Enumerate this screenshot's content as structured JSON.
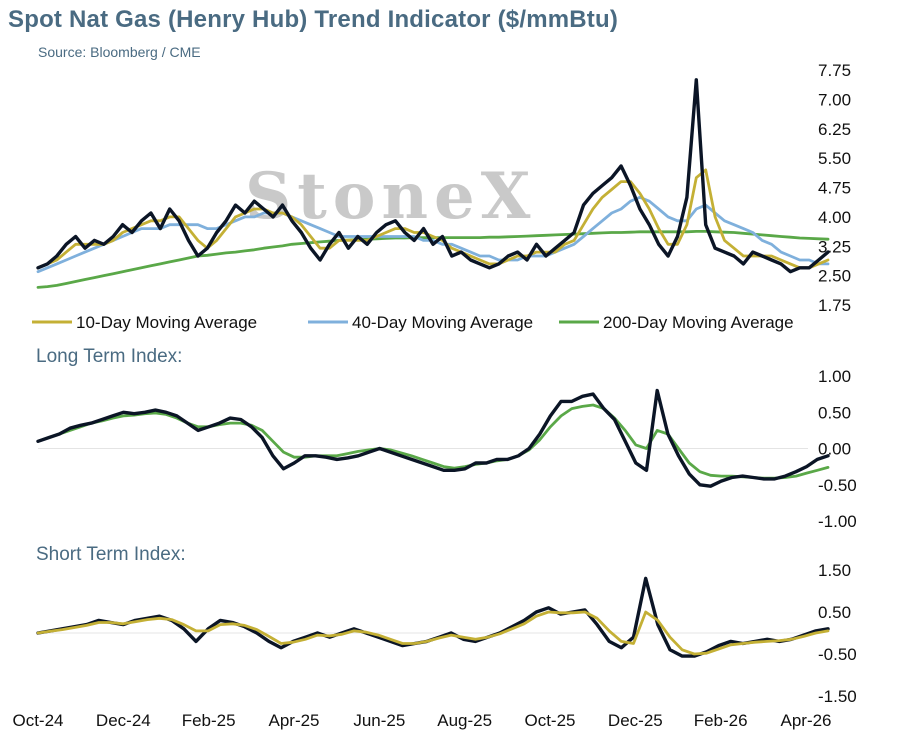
{
  "title": "Spot Nat Gas (Henry Hub) Trend Indicator ($/mmBtu)",
  "source": "Source: Bloomberg / CME",
  "watermark": "StoneX",
  "colors": {
    "spot": "#0b1526",
    "ma10": "#c4b035",
    "ma40": "#7fb0dc",
    "ma200": "#5aa848",
    "text": "#4a6b82"
  },
  "chart_data": [
    {
      "type": "line",
      "title": "Spot Nat Gas (Henry Hub) Trend Indicator ($/mmBtu)",
      "x_ticks": [
        "Oct-24",
        "Dec-24",
        "Feb-25",
        "Apr-25",
        "Jun-25",
        "Aug-25",
        "Oct-25",
        "Dec-25",
        "Feb-26",
        "Apr-26"
      ],
      "y_ticks": [
        "7.75",
        "7.00",
        "6.25",
        "5.50",
        "4.75",
        "4.00",
        "3.25",
        "2.50",
        "1.75"
      ],
      "ylim": [
        1.75,
        7.75
      ],
      "legend": [
        "10-Day Moving Average",
        "40-Day Moving Average",
        "200-Day Moving Average"
      ],
      "legend_position": "bottom",
      "series": [
        {
          "name": "Spot",
          "key": "spot",
          "values": [
            2.7,
            2.8,
            3.0,
            3.3,
            3.5,
            3.2,
            3.4,
            3.3,
            3.5,
            3.8,
            3.6,
            3.9,
            4.1,
            3.7,
            4.2,
            3.9,
            3.4,
            3.0,
            3.2,
            3.6,
            3.9,
            4.3,
            4.1,
            4.4,
            4.2,
            4.0,
            4.3,
            3.9,
            3.6,
            3.2,
            2.9,
            3.3,
            3.6,
            3.2,
            3.5,
            3.3,
            3.6,
            3.8,
            3.9,
            3.6,
            3.4,
            3.7,
            3.3,
            3.5,
            3.0,
            3.1,
            2.9,
            2.8,
            2.7,
            2.8,
            3.0,
            3.1,
            2.9,
            3.3,
            3.0,
            3.2,
            3.4,
            3.6,
            4.3,
            4.6,
            4.8,
            5.0,
            5.3,
            4.8,
            4.2,
            3.8,
            3.3,
            3.0,
            3.5,
            4.5,
            7.5,
            3.8,
            3.2,
            3.1,
            3.0,
            2.8,
            3.1,
            3.0,
            2.9,
            2.8,
            2.6,
            2.7,
            2.7,
            2.9,
            3.1
          ]
        },
        {
          "name": "10-Day Moving Average",
          "key": "ma10",
          "values": [
            2.7,
            2.8,
            2.9,
            3.1,
            3.3,
            3.3,
            3.3,
            3.3,
            3.4,
            3.6,
            3.7,
            3.8,
            3.9,
            3.9,
            4.0,
            4.0,
            3.7,
            3.4,
            3.2,
            3.4,
            3.7,
            4.0,
            4.1,
            4.2,
            4.2,
            4.1,
            4.1,
            4.0,
            3.8,
            3.5,
            3.2,
            3.2,
            3.4,
            3.4,
            3.4,
            3.4,
            3.5,
            3.6,
            3.7,
            3.7,
            3.6,
            3.6,
            3.5,
            3.4,
            3.2,
            3.1,
            3.0,
            2.9,
            2.8,
            2.8,
            2.9,
            3.0,
            3.0,
            3.1,
            3.1,
            3.1,
            3.3,
            3.4,
            3.8,
            4.2,
            4.5,
            4.7,
            4.9,
            4.9,
            4.6,
            4.2,
            3.7,
            3.3,
            3.3,
            3.8,
            5.0,
            5.2,
            4.0,
            3.4,
            3.2,
            3.0,
            3.0,
            3.0,
            3.0,
            2.9,
            2.8,
            2.7,
            2.7,
            2.8,
            2.9
          ]
        },
        {
          "name": "40-Day Moving Average",
          "key": "ma40",
          "values": [
            2.6,
            2.7,
            2.8,
            2.9,
            3.0,
            3.1,
            3.2,
            3.3,
            3.4,
            3.5,
            3.6,
            3.7,
            3.7,
            3.7,
            3.8,
            3.8,
            3.8,
            3.8,
            3.7,
            3.7,
            3.8,
            3.9,
            4.0,
            4.0,
            4.1,
            4.1,
            4.1,
            4.0,
            3.9,
            3.8,
            3.7,
            3.6,
            3.5,
            3.5,
            3.5,
            3.5,
            3.5,
            3.5,
            3.5,
            3.5,
            3.5,
            3.4,
            3.4,
            3.3,
            3.3,
            3.2,
            3.1,
            3.0,
            3.0,
            2.9,
            2.9,
            2.9,
            3.0,
            3.0,
            3.0,
            3.1,
            3.2,
            3.3,
            3.5,
            3.7,
            3.9,
            4.1,
            4.2,
            4.4,
            4.5,
            4.4,
            4.2,
            4.0,
            3.9,
            3.9,
            4.2,
            4.3,
            4.1,
            3.9,
            3.8,
            3.7,
            3.6,
            3.4,
            3.3,
            3.1,
            3.0,
            2.9,
            2.9,
            2.8,
            2.8
          ]
        },
        {
          "name": "200-Day Moving Average",
          "key": "ma200",
          "values": [
            2.2,
            2.22,
            2.25,
            2.3,
            2.35,
            2.4,
            2.45,
            2.5,
            2.55,
            2.6,
            2.65,
            2.7,
            2.75,
            2.8,
            2.85,
            2.9,
            2.95,
            3.0,
            3.02,
            3.05,
            3.08,
            3.1,
            3.13,
            3.16,
            3.2,
            3.23,
            3.26,
            3.3,
            3.32,
            3.34,
            3.36,
            3.38,
            3.4,
            3.41,
            3.42,
            3.43,
            3.44,
            3.45,
            3.46,
            3.46,
            3.47,
            3.47,
            3.47,
            3.47,
            3.47,
            3.47,
            3.47,
            3.47,
            3.48,
            3.48,
            3.49,
            3.5,
            3.51,
            3.52,
            3.53,
            3.54,
            3.55,
            3.56,
            3.57,
            3.58,
            3.59,
            3.6,
            3.6,
            3.61,
            3.62,
            3.62,
            3.62,
            3.62,
            3.62,
            3.62,
            3.63,
            3.63,
            3.62,
            3.61,
            3.6,
            3.58,
            3.56,
            3.54,
            3.52,
            3.5,
            3.48,
            3.46,
            3.45,
            3.44,
            3.43
          ]
        }
      ]
    },
    {
      "type": "line",
      "title": "Long Term Index:",
      "y_ticks": [
        "1.00",
        "0.50",
        "0.00",
        "-0.50",
        "-1.00"
      ],
      "ylim": [
        -1.0,
        1.0
      ],
      "series": [
        {
          "key": "spot",
          "values": [
            0.1,
            0.15,
            0.2,
            0.28,
            0.32,
            0.35,
            0.4,
            0.45,
            0.5,
            0.48,
            0.5,
            0.53,
            0.5,
            0.45,
            0.35,
            0.25,
            0.3,
            0.35,
            0.42,
            0.4,
            0.3,
            0.15,
            -0.1,
            -0.28,
            -0.2,
            -0.1,
            -0.1,
            -0.12,
            -0.15,
            -0.13,
            -0.1,
            -0.05,
            0.0,
            -0.05,
            -0.1,
            -0.15,
            -0.2,
            -0.25,
            -0.3,
            -0.3,
            -0.28,
            -0.2,
            -0.2,
            -0.15,
            -0.15,
            -0.1,
            0.0,
            0.2,
            0.45,
            0.65,
            0.65,
            0.72,
            0.75,
            0.55,
            0.4,
            0.1,
            -0.2,
            -0.3,
            0.8,
            0.2,
            -0.1,
            -0.35,
            -0.5,
            -0.52,
            -0.45,
            -0.4,
            -0.38,
            -0.4,
            -0.42,
            -0.42,
            -0.38,
            -0.32,
            -0.25,
            -0.15,
            -0.1
          ]
        },
        {
          "key": "ma200",
          "values": [
            0.1,
            0.15,
            0.2,
            0.25,
            0.3,
            0.35,
            0.38,
            0.42,
            0.45,
            0.46,
            0.48,
            0.49,
            0.47,
            0.42,
            0.35,
            0.3,
            0.3,
            0.33,
            0.35,
            0.35,
            0.32,
            0.25,
            0.1,
            -0.05,
            -0.12,
            -0.12,
            -0.1,
            -0.1,
            -0.1,
            -0.07,
            -0.04,
            -0.02,
            0.0,
            -0.02,
            -0.06,
            -0.1,
            -0.15,
            -0.2,
            -0.25,
            -0.27,
            -0.25,
            -0.22,
            -0.2,
            -0.17,
            -0.15,
            -0.1,
            -0.02,
            0.12,
            0.3,
            0.45,
            0.55,
            0.58,
            0.6,
            0.55,
            0.42,
            0.25,
            0.05,
            0.0,
            0.25,
            0.2,
            0.0,
            -0.2,
            -0.32,
            -0.37,
            -0.38,
            -0.38,
            -0.39,
            -0.4,
            -0.41,
            -0.41,
            -0.4,
            -0.38,
            -0.34,
            -0.3,
            -0.26
          ]
        }
      ]
    },
    {
      "type": "line",
      "title": "Short Term Index:",
      "y_ticks": [
        "1.50",
        "0.50",
        "-0.50",
        "-1.50"
      ],
      "ylim": [
        -1.5,
        1.5
      ],
      "series": [
        {
          "key": "spot",
          "values": [
            0.0,
            0.05,
            0.1,
            0.15,
            0.2,
            0.3,
            0.25,
            0.2,
            0.3,
            0.35,
            0.4,
            0.3,
            0.1,
            -0.2,
            0.1,
            0.3,
            0.25,
            0.15,
            0.0,
            -0.2,
            -0.35,
            -0.2,
            -0.1,
            0.0,
            -0.1,
            0.0,
            0.1,
            0.0,
            -0.1,
            -0.2,
            -0.3,
            -0.25,
            -0.2,
            -0.1,
            0.0,
            -0.15,
            -0.2,
            -0.1,
            0.0,
            0.15,
            0.3,
            0.5,
            0.6,
            0.45,
            0.5,
            0.55,
            0.2,
            -0.2,
            -0.35,
            -0.1,
            1.3,
            0.2,
            -0.4,
            -0.55,
            -0.55,
            -0.45,
            -0.3,
            -0.2,
            -0.25,
            -0.2,
            -0.15,
            -0.2,
            -0.15,
            -0.05,
            0.05,
            0.1
          ]
        },
        {
          "key": "ma10",
          "values": [
            0.0,
            0.04,
            0.08,
            0.13,
            0.18,
            0.25,
            0.25,
            0.22,
            0.27,
            0.32,
            0.35,
            0.32,
            0.2,
            0.05,
            0.05,
            0.2,
            0.22,
            0.18,
            0.08,
            -0.08,
            -0.25,
            -0.22,
            -0.15,
            -0.05,
            -0.07,
            -0.03,
            0.05,
            0.02,
            -0.05,
            -0.15,
            -0.25,
            -0.25,
            -0.2,
            -0.12,
            -0.05,
            -0.1,
            -0.15,
            -0.1,
            -0.02,
            0.1,
            0.22,
            0.4,
            0.5,
            0.48,
            0.48,
            0.5,
            0.35,
            0.05,
            -0.2,
            -0.25,
            0.5,
            0.3,
            -0.1,
            -0.4,
            -0.5,
            -0.48,
            -0.38,
            -0.28,
            -0.25,
            -0.22,
            -0.2,
            -0.18,
            -0.15,
            -0.08,
            0.0,
            0.05
          ]
        }
      ]
    }
  ]
}
